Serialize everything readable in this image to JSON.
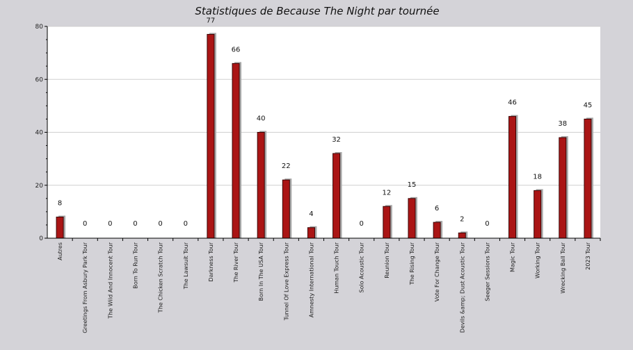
{
  "chart_data": {
    "type": "bar",
    "title": "Statistiques de Because The Night par tournée",
    "xlabel": "",
    "ylabel": "",
    "ylim": [
      0,
      80
    ],
    "yticks": [
      0,
      20,
      40,
      60,
      80
    ],
    "grid": true,
    "categories": [
      "Autres",
      "Greetings From Asbury Park Tour",
      "The Wild And Innocent Tour",
      "Born To Run Tour",
      "The Chicken Scratch Tour",
      "The Lawsuit Tour",
      "Darkness Tour",
      "The River Tour",
      "Born In The USA Tour",
      "Tunnel Of Love Express Tour",
      "Amnesty International Tour",
      "Human Touch Tour",
      "Solo Acoustic Tour",
      "Reunion Tour",
      "The Rising Tour",
      "Vote For Change Tour",
      "Devils &amp; Dust Acoustic Tour",
      "Seeger Sessions Tour",
      "Magic Tour",
      "Working Tour",
      "Wrecking Ball Tour",
      "2023 Tour"
    ],
    "values": [
      8,
      0,
      0,
      0,
      0,
      0,
      77,
      66,
      40,
      22,
      4,
      32,
      0,
      12,
      15,
      6,
      2,
      0,
      46,
      18,
      38,
      45
    ],
    "colors": {
      "bar": "#aa1515",
      "bar_edge": "#3a0505",
      "shadow": "#a8a8a8",
      "plot_bg": "#ffffff",
      "grid": "#cfcfcf"
    }
  }
}
